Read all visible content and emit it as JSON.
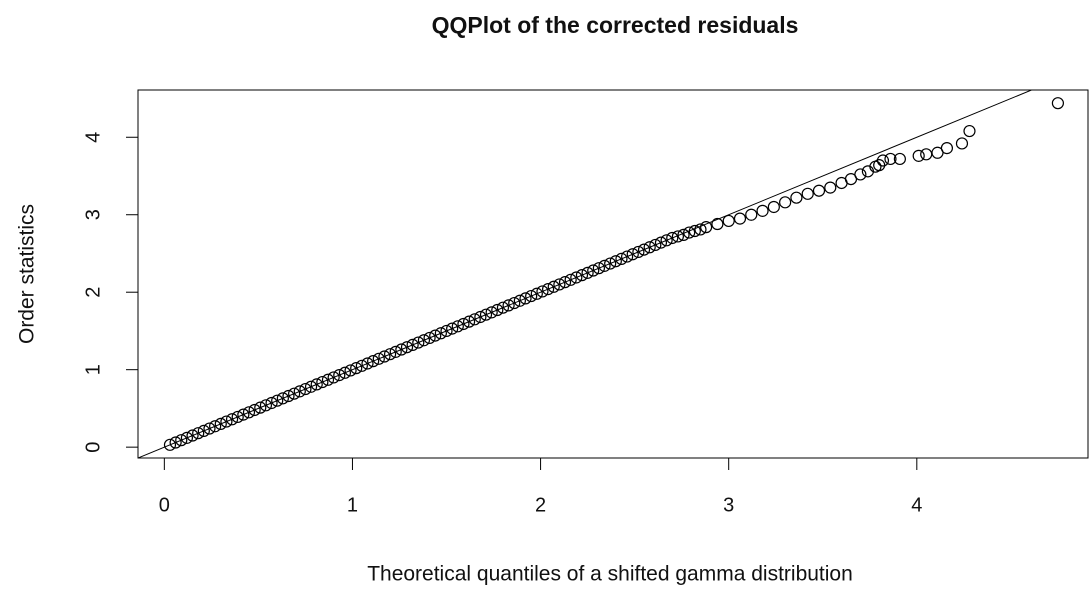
{
  "chart_data": {
    "type": "scatter",
    "title": "QQPlot of the corrected residuals",
    "x_label": "Theoretical quantiles of a shifted gamma distribution",
    "y_label": "Order statistics",
    "xlim": [
      -0.14,
      4.91
    ],
    "ylim": [
      -0.14,
      4.61
    ],
    "xticks": [
      0,
      1,
      2,
      3,
      4
    ],
    "yticks": [
      0,
      1,
      2,
      3,
      4
    ],
    "color": "#000000",
    "abline": {
      "intercept": 0,
      "slope": 1
    },
    "x": [
      0.03,
      0.06,
      0.09,
      0.12,
      0.15,
      0.18,
      0.21,
      0.24,
      0.27,
      0.3,
      0.33,
      0.36,
      0.39,
      0.42,
      0.45,
      0.48,
      0.51,
      0.54,
      0.57,
      0.6,
      0.63,
      0.66,
      0.69,
      0.72,
      0.75,
      0.78,
      0.81,
      0.84,
      0.87,
      0.9,
      0.93,
      0.96,
      0.99,
      1.02,
      1.05,
      1.08,
      1.11,
      1.14,
      1.17,
      1.2,
      1.23,
      1.26,
      1.29,
      1.32,
      1.35,
      1.38,
      1.41,
      1.44,
      1.47,
      1.5,
      1.53,
      1.56,
      1.59,
      1.62,
      1.65,
      1.68,
      1.71,
      1.74,
      1.77,
      1.8,
      1.83,
      1.86,
      1.89,
      1.92,
      1.95,
      1.98,
      2.01,
      2.04,
      2.07,
      2.1,
      2.13,
      2.16,
      2.19,
      2.22,
      2.25,
      2.28,
      2.31,
      2.34,
      2.37,
      2.4,
      2.43,
      2.46,
      2.49,
      2.52,
      2.55,
      2.58,
      2.61,
      2.64,
      2.67,
      2.7,
      2.73,
      2.76,
      2.79,
      2.82,
      2.85,
      2.88,
      2.94,
      3.0,
      3.06,
      3.12,
      3.18,
      3.24,
      3.3,
      3.36,
      3.42,
      3.48,
      3.54,
      3.6,
      3.65,
      3.7,
      3.74,
      3.78,
      3.8,
      3.82,
      3.86,
      3.91,
      4.01,
      4.05,
      4.11,
      4.16,
      4.24,
      4.28,
      4.75
    ],
    "values": [
      0.03,
      0.06,
      0.09,
      0.12,
      0.15,
      0.18,
      0.21,
      0.24,
      0.27,
      0.3,
      0.33,
      0.36,
      0.39,
      0.42,
      0.45,
      0.48,
      0.51,
      0.54,
      0.57,
      0.6,
      0.63,
      0.66,
      0.69,
      0.72,
      0.75,
      0.78,
      0.81,
      0.84,
      0.87,
      0.9,
      0.93,
      0.96,
      0.99,
      1.02,
      1.05,
      1.08,
      1.11,
      1.14,
      1.17,
      1.2,
      1.23,
      1.26,
      1.29,
      1.32,
      1.35,
      1.38,
      1.41,
      1.44,
      1.47,
      1.5,
      1.53,
      1.56,
      1.59,
      1.62,
      1.65,
      1.68,
      1.71,
      1.74,
      1.77,
      1.8,
      1.83,
      1.86,
      1.89,
      1.92,
      1.95,
      1.98,
      2.01,
      2.04,
      2.07,
      2.1,
      2.13,
      2.16,
      2.19,
      2.22,
      2.25,
      2.28,
      2.31,
      2.34,
      2.37,
      2.4,
      2.43,
      2.46,
      2.49,
      2.52,
      2.55,
      2.58,
      2.61,
      2.64,
      2.67,
      2.7,
      2.72,
      2.74,
      2.77,
      2.79,
      2.81,
      2.84,
      2.88,
      2.92,
      2.95,
      3.0,
      3.05,
      3.1,
      3.16,
      3.22,
      3.27,
      3.31,
      3.35,
      3.41,
      3.46,
      3.52,
      3.56,
      3.62,
      3.64,
      3.7,
      3.72,
      3.72,
      3.76,
      3.78,
      3.8,
      3.86,
      3.92,
      4.08,
      4.44
    ]
  }
}
